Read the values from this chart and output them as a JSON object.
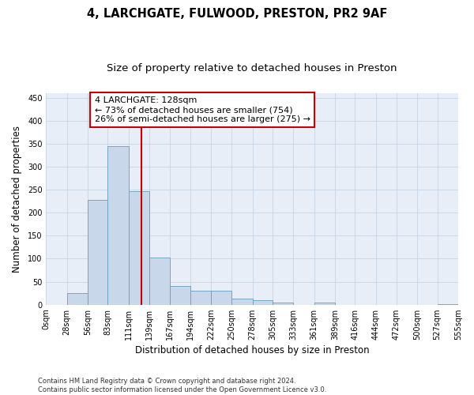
{
  "title1": "4, LARCHGATE, FULWOOD, PRESTON, PR2 9AF",
  "title2": "Size of property relative to detached houses in Preston",
  "xlabel": "Distribution of detached houses by size in Preston",
  "ylabel": "Number of detached properties",
  "bin_edges": [
    0,
    28,
    56,
    83,
    111,
    139,
    167,
    194,
    222,
    250,
    278,
    305,
    333,
    361,
    389,
    416,
    444,
    472,
    500,
    527,
    555
  ],
  "bar_heights": [
    0,
    25,
    228,
    345,
    247,
    102,
    40,
    30,
    30,
    14,
    10,
    5,
    0,
    5,
    0,
    0,
    0,
    0,
    0,
    1
  ],
  "bar_color": "#c8d8ea",
  "bar_edgecolor": "#6a9cbf",
  "vline_x": 128,
  "vline_color": "#cc0000",
  "annotation_text": "4 LARCHGATE: 128sqm\n← 73% of detached houses are smaller (754)\n26% of semi-detached houses are larger (275) →",
  "annotation_box_facecolor": "#ffffff",
  "annotation_box_edgecolor": "#cc0000",
  "ylim": [
    0,
    460
  ],
  "yticks": [
    0,
    50,
    100,
    150,
    200,
    250,
    300,
    350,
    400,
    450
  ],
  "xlim": [
    0,
    555
  ],
  "grid_color": "#c8d4e4",
  "background_color": "#e8eef8",
  "footnote": "Contains HM Land Registry data © Crown copyright and database right 2024.\nContains public sector information licensed under the Open Government Licence v3.0.",
  "title1_fontsize": 10.5,
  "title2_fontsize": 9.5,
  "xlabel_fontsize": 8.5,
  "ylabel_fontsize": 8.5,
  "tick_fontsize": 7,
  "annotation_fontsize": 8,
  "footnote_fontsize": 6
}
